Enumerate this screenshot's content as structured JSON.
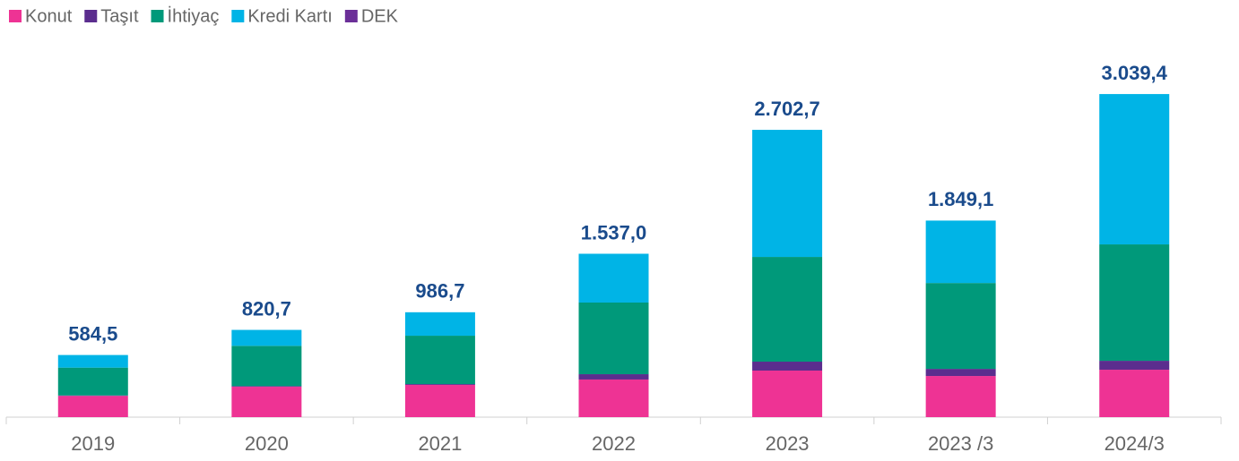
{
  "chart_data": {
    "type": "stacked_bar",
    "categories": [
      "2019",
      "2020",
      "2021",
      "2022",
      "2023",
      "2023 /3",
      "2024/3"
    ],
    "series": [
      {
        "name": "Konut",
        "color": "#ee3394",
        "values": [
          200,
          286,
          303,
          354,
          438,
          387,
          446
        ]
      },
      {
        "name": "Taşıt",
        "color": "#5b2d8e",
        "values": [
          4,
          6,
          8,
          50,
          84,
          67,
          84
        ]
      },
      {
        "name": "İhtiyaç",
        "color": "#00997a",
        "values": [
          262,
          379,
          455,
          674,
          985,
          808,
          1095
        ]
      },
      {
        "name": "Kredi Kartı",
        "color": "#00b4e6",
        "values": [
          118.5,
          149.7,
          220.7,
          459,
          1195.7,
          587.1,
          1414.4
        ]
      },
      {
        "name": "DEK",
        "color": "#6b2f98",
        "values": [
          0,
          0,
          0,
          0,
          0,
          0,
          0
        ]
      }
    ],
    "totals": [
      584.5,
      820.7,
      986.7,
      1537.0,
      2702.7,
      1849.1,
      3039.4
    ],
    "total_labels": [
      "584,5",
      "820,7",
      "986,7",
      "1.537,0",
      "2.702,7",
      "1.849,1",
      "3.039,4"
    ],
    "ylim": [
      0,
      3200
    ]
  }
}
